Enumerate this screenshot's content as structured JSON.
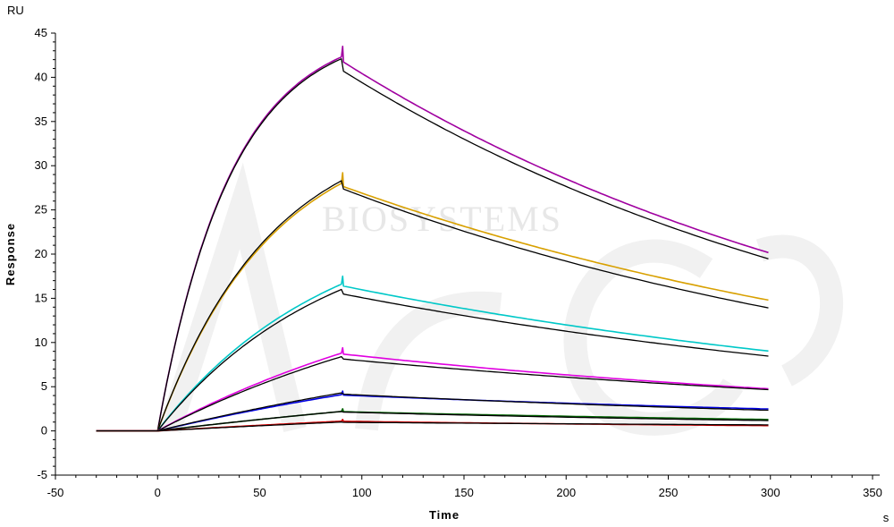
{
  "watermark": {
    "text": "BIOSYSTEMS"
  },
  "chart_data": {
    "type": "line",
    "title": "",
    "xlabel": "Time",
    "ylabel": "Response",
    "x_unit": "s",
    "y_unit": "RU",
    "xlim": [
      -50,
      350
    ],
    "ylim": [
      -5,
      45
    ],
    "x_ticks": [
      -50,
      0,
      50,
      100,
      150,
      200,
      250,
      300,
      350
    ],
    "y_ticks": [
      -5,
      0,
      5,
      10,
      15,
      20,
      25,
      30,
      35,
      40,
      45
    ],
    "grid": false,
    "legend": "none",
    "association_start": 0,
    "dissociation_start": 90,
    "end_time": 300,
    "baseline_start": -30,
    "series": [
      {
        "color": "#a000a0",
        "kind": "measured",
        "peak": 42.3,
        "final": 20.3,
        "rate_k": 0.028,
        "spike": 1.2
      },
      {
        "color": "#000000",
        "kind": "fit",
        "peak": 42.1,
        "final": 20.0,
        "rate_k": 0.028,
        "spike": 0
      },
      {
        "color": "#d8a000",
        "kind": "measured",
        "peak": 28.0,
        "final": 14.9,
        "rate_k": 0.018,
        "spike": 1.2
      },
      {
        "color": "#000000",
        "kind": "fit",
        "peak": 28.3,
        "final": 14.3,
        "rate_k": 0.018,
        "spike": 0
      },
      {
        "color": "#00c8c8",
        "kind": "measured",
        "peak": 16.6,
        "final": 9.1,
        "rate_k": 0.012,
        "spike": 0.9
      },
      {
        "color": "#000000",
        "kind": "fit",
        "peak": 16.0,
        "final": 8.7,
        "rate_k": 0.012,
        "spike": 0
      },
      {
        "color": "#e000e0",
        "kind": "measured",
        "peak": 8.8,
        "final": 4.8,
        "rate_k": 0.006,
        "spike": 0.6
      },
      {
        "color": "#000000",
        "kind": "fit",
        "peak": 8.4,
        "final": 4.8,
        "rate_k": 0.006,
        "spike": 0
      },
      {
        "color": "#0000e0",
        "kind": "measured",
        "peak": 4.1,
        "final": 2.5,
        "rate_k": 0.004,
        "spike": 0.4
      },
      {
        "color": "#000000",
        "kind": "fit",
        "peak": 4.3,
        "final": 2.4,
        "rate_k": 0.004,
        "spike": 0
      },
      {
        "color": "#006400",
        "kind": "measured",
        "peak": 2.2,
        "final": 1.3,
        "rate_k": 0.003,
        "spike": 0.3
      },
      {
        "color": "#000000",
        "kind": "fit",
        "peak": 2.2,
        "final": 1.2,
        "rate_k": 0.003,
        "spike": 0
      },
      {
        "color": "#d00000",
        "kind": "measured",
        "peak": 1.1,
        "final": 0.6,
        "rate_k": 0.002,
        "spike": 0.2
      },
      {
        "color": "#000000",
        "kind": "fit",
        "peak": 1.0,
        "final": 0.7,
        "rate_k": 0.002,
        "spike": 0
      }
    ]
  }
}
